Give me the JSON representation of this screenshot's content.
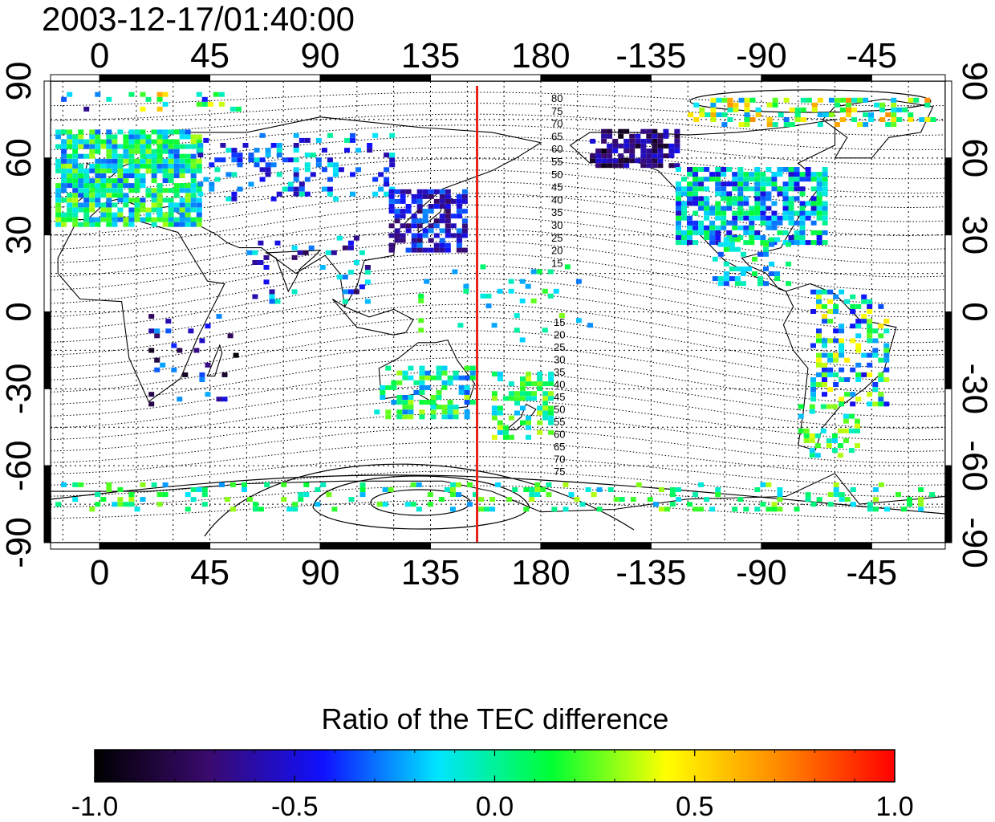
{
  "title": "2003-12-17/01:40:00",
  "map": {
    "x_ticks": [
      "0",
      "45",
      "90",
      "135",
      "180",
      "-135",
      "-90",
      "-45"
    ],
    "x_tick_lon": [
      0,
      45,
      90,
      135,
      180,
      225,
      270,
      315
    ],
    "y_ticks": [
      "90",
      "60",
      "30",
      "0",
      "-30",
      "-60",
      "-90"
    ],
    "y_tick_lat": [
      90,
      60,
      30,
      0,
      -30,
      -60,
      -90
    ],
    "lon_range": [
      -20,
      345
    ],
    "lat_range": [
      -90,
      90
    ],
    "grid": true,
    "red_line_lon": 154,
    "red_line_color": "#e8201a",
    "contour_labels_north": [
      "80",
      "75",
      "70",
      "65",
      "60",
      "55",
      "50",
      "45",
      "40",
      "35",
      "30",
      "25",
      "20",
      "15"
    ],
    "contour_labels_south": [
      "15",
      "20",
      "25",
      "30",
      "35",
      "40",
      "45",
      "50",
      "55",
      "60",
      "65",
      "70",
      "75"
    ]
  },
  "colorbar": {
    "title": "Ratio of the TEC difference",
    "tick_labels": [
      "-1.0",
      "-0.5",
      "0.0",
      "0.5",
      "1.0"
    ],
    "tick_values": [
      -1.0,
      -0.5,
      0.0,
      0.5,
      1.0
    ],
    "colors": [
      "#000000",
      "#3a0a6e",
      "#1010ff",
      "#00e5ff",
      "#00ff33",
      "#ffff00",
      "#ff8800",
      "#ff0000"
    ]
  }
}
